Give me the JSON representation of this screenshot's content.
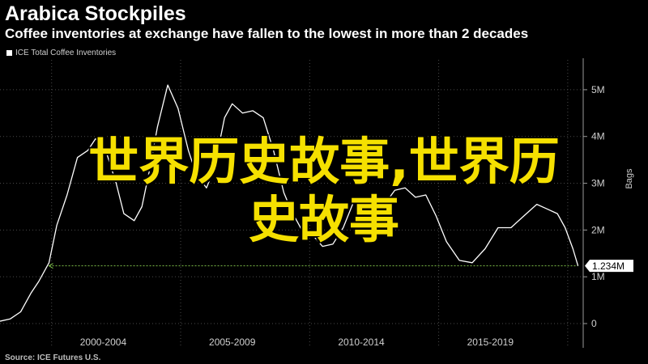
{
  "title": "Arabica Stockpiles",
  "subtitle": "Coffee inventories at exchange have fallen to the lowest in more than 2 decades",
  "source": "Source: ICE Futures U.S.",
  "overlay_text": {
    "line1": "世界历史故事,世界历",
    "line2": "史故事"
  },
  "colors": {
    "background": "#000000",
    "line": "#ffffff",
    "reference": "#7ec04a",
    "overlay": "#f5e000",
    "grid": "#4a4a4a"
  },
  "chart_data": {
    "type": "line",
    "title": "Arabica Stockpiles",
    "subtitle": "Coffee inventories at exchange have fallen to the lowest in more than 2 decades",
    "ylabel": "Bags",
    "ylim": [
      0,
      5.5
    ],
    "xlim": [
      1998.0,
      2020.6
    ],
    "y_ticks": [
      {
        "value": 0,
        "label": "0"
      },
      {
        "value": 1,
        "label": "1M"
      },
      {
        "value": 2,
        "label": "2M"
      },
      {
        "value": 3,
        "label": "3M"
      },
      {
        "value": 4,
        "label": "4M"
      },
      {
        "value": 5,
        "label": "5M"
      }
    ],
    "x_ticks": [
      {
        "value": 2002,
        "label": "2000-2004"
      },
      {
        "value": 2007,
        "label": "2005-2009"
      },
      {
        "value": 2012,
        "label": "2010-2014"
      },
      {
        "value": 2017,
        "label": "2015-2019"
      }
    ],
    "x_separators": [
      2000,
      2005,
      2010,
      2015,
      2020
    ],
    "grid": true,
    "legend": "top-left",
    "series": [
      {
        "name": "ICE Total Coffee Inventories",
        "x": [
          1998.0,
          1998.4,
          1998.8,
          1999.2,
          1999.5,
          1999.9,
          2000.2,
          2000.6,
          2001.0,
          2001.4,
          2001.7,
          2002.1,
          2002.5,
          2002.8,
          2003.2,
          2003.5,
          2003.8,
          2004.1,
          2004.5,
          2004.9,
          2005.3,
          2005.6,
          2006.0,
          2006.3,
          2006.7,
          2007.0,
          2007.4,
          2007.8,
          2008.2,
          2008.6,
          2009.0,
          2009.3,
          2009.7,
          2010.1,
          2010.5,
          2010.9,
          2011.3,
          2011.7,
          2012.1,
          2012.5,
          2012.9,
          2013.3,
          2013.7,
          2014.1,
          2014.5,
          2014.9,
          2015.3,
          2015.8,
          2016.3,
          2016.8,
          2017.3,
          2017.8,
          2018.3,
          2018.8,
          2019.2,
          2019.6,
          2019.9,
          2020.2,
          2020.4
        ],
        "values": [
          0.05,
          0.1,
          0.25,
          0.65,
          0.9,
          1.3,
          2.1,
          2.75,
          3.55,
          3.7,
          3.95,
          3.7,
          3.0,
          2.35,
          2.2,
          2.5,
          3.3,
          4.2,
          5.1,
          4.6,
          3.7,
          3.2,
          2.9,
          3.3,
          4.4,
          4.7,
          4.5,
          4.55,
          4.4,
          3.7,
          2.8,
          2.4,
          2.0,
          1.9,
          1.65,
          1.7,
          2.05,
          2.6,
          2.7,
          2.4,
          2.55,
          2.85,
          2.9,
          2.7,
          2.75,
          2.3,
          1.75,
          1.35,
          1.3,
          1.6,
          2.05,
          2.05,
          2.3,
          2.55,
          2.45,
          2.35,
          2.05,
          1.6,
          1.234
        ]
      }
    ],
    "reference_line": {
      "value": 1.234,
      "label": "1.234M",
      "from_x": 1999.9,
      "to_x": 2020.4
    }
  }
}
